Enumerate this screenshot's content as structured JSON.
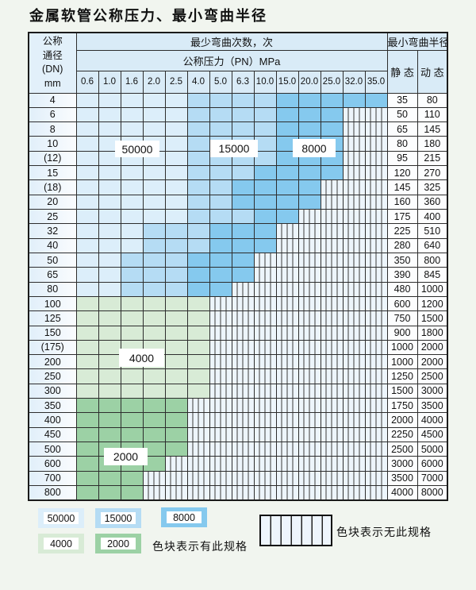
{
  "title": "金属软管公称压力、最小弯曲半径",
  "header": {
    "dn_lines": [
      "公称",
      "通径",
      "(DN)",
      "mm"
    ],
    "bend_count_label": "最少弯曲次数，次",
    "pressure_label": "公称压力（PN）MPa",
    "radius_label": "最小弯曲半径",
    "static_label": "静 态",
    "dynamic_label": "动 态",
    "pressure_columns": [
      "0.6",
      "1.0",
      "1.6",
      "2.0",
      "2.5",
      "4.0",
      "5.0",
      "6.3",
      "10.0",
      "15.0",
      "20.0",
      "25.0",
      "32.0",
      "35.0"
    ]
  },
  "colors": {
    "50": "#dceefa",
    "15": "#b5dcf4",
    "8": "#85c9ee",
    "4": "#d8ebd6",
    "2": "#9cd1a5"
  },
  "overlay_labels": [
    {
      "text": "50000"
    },
    {
      "text": "15000"
    },
    {
      "text": "8000"
    },
    {
      "text": "4000"
    },
    {
      "text": "2000"
    }
  ],
  "legend": {
    "swatches": [
      {
        "value": "50000",
        "code": "50"
      },
      {
        "value": "15000",
        "code": "15"
      },
      {
        "value": "8000",
        "code": "8"
      },
      {
        "value": "4000",
        "code": "4"
      },
      {
        "value": "2000",
        "code": "2"
      }
    ],
    "has_spec_label": "色块表示有此规格",
    "no_spec_label": "色块表示无此规格"
  },
  "rows": [
    {
      "dn": "4",
      "cells": [
        "50",
        "50",
        "50",
        "50",
        "50",
        "15",
        "15",
        "15",
        "15",
        "8",
        "8",
        "8",
        "8",
        "8"
      ],
      "static": "35",
      "dynamic": "80"
    },
    {
      "dn": "6",
      "cells": [
        "50",
        "50",
        "50",
        "50",
        "50",
        "15",
        "15",
        "15",
        "15",
        "8",
        "8",
        "8",
        "-",
        "-"
      ],
      "static": "50",
      "dynamic": "110"
    },
    {
      "dn": "8",
      "cells": [
        "50",
        "50",
        "50",
        "50",
        "50",
        "15",
        "15",
        "15",
        "15",
        "8",
        "8",
        "8",
        "-",
        "-"
      ],
      "static": "65",
      "dynamic": "145"
    },
    {
      "dn": "10",
      "cells": [
        "50",
        "50",
        "50",
        "50",
        "50",
        "15",
        "15",
        "15",
        "15",
        "8",
        "8",
        "8",
        "-",
        "-"
      ],
      "static": "80",
      "dynamic": "180"
    },
    {
      "dn": "(12)",
      "cells": [
        "50",
        "50",
        "50",
        "50",
        "50",
        "15",
        "15",
        "15",
        "15",
        "8",
        "8",
        "8",
        "-",
        "-"
      ],
      "static": "95",
      "dynamic": "215"
    },
    {
      "dn": "15",
      "cells": [
        "50",
        "50",
        "50",
        "50",
        "50",
        "15",
        "15",
        "15",
        "8",
        "8",
        "8",
        "8",
        "-",
        "-"
      ],
      "static": "120",
      "dynamic": "270"
    },
    {
      "dn": "(18)",
      "cells": [
        "50",
        "50",
        "50",
        "50",
        "50",
        "15",
        "15",
        "8",
        "8",
        "8",
        "8",
        "-",
        "-",
        "-"
      ],
      "static": "145",
      "dynamic": "325"
    },
    {
      "dn": "20",
      "cells": [
        "50",
        "50",
        "50",
        "50",
        "50",
        "15",
        "15",
        "8",
        "8",
        "8",
        "8",
        "-",
        "-",
        "-"
      ],
      "static": "160",
      "dynamic": "360"
    },
    {
      "dn": "25",
      "cells": [
        "50",
        "50",
        "50",
        "50",
        "50",
        "15",
        "15",
        "15",
        "8",
        "8",
        "-",
        "-",
        "-",
        "-"
      ],
      "static": "175",
      "dynamic": "400"
    },
    {
      "dn": "32",
      "cells": [
        "50",
        "50",
        "50",
        "15",
        "15",
        "15",
        "8",
        "8",
        "8",
        "-",
        "-",
        "-",
        "-",
        "-"
      ],
      "static": "225",
      "dynamic": "510"
    },
    {
      "dn": "40",
      "cells": [
        "50",
        "50",
        "50",
        "15",
        "15",
        "15",
        "8",
        "8",
        "8",
        "-",
        "-",
        "-",
        "-",
        "-"
      ],
      "static": "280",
      "dynamic": "640"
    },
    {
      "dn": "50",
      "cells": [
        "50",
        "50",
        "15",
        "15",
        "15",
        "8",
        "8",
        "8",
        "-",
        "-",
        "-",
        "-",
        "-",
        "-"
      ],
      "static": "350",
      "dynamic": "800"
    },
    {
      "dn": "65",
      "cells": [
        "50",
        "50",
        "15",
        "15",
        "15",
        "8",
        "8",
        "8",
        "-",
        "-",
        "-",
        "-",
        "-",
        "-"
      ],
      "static": "390",
      "dynamic": "845"
    },
    {
      "dn": "80",
      "cells": [
        "50",
        "50",
        "15",
        "15",
        "15",
        "8",
        "8",
        "-",
        "-",
        "-",
        "-",
        "-",
        "-",
        "-"
      ],
      "static": "480",
      "dynamic": "1000"
    },
    {
      "dn": "100",
      "cells": [
        "4",
        "4",
        "4",
        "4",
        "4",
        "4",
        "-",
        "-",
        "-",
        "-",
        "-",
        "-",
        "-",
        "-"
      ],
      "static": "600",
      "dynamic": "1200"
    },
    {
      "dn": "125",
      "cells": [
        "4",
        "4",
        "4",
        "4",
        "4",
        "4",
        "-",
        "-",
        "-",
        "-",
        "-",
        "-",
        "-",
        "-"
      ],
      "static": "750",
      "dynamic": "1500"
    },
    {
      "dn": "150",
      "cells": [
        "4",
        "4",
        "4",
        "4",
        "4",
        "4",
        "-",
        "-",
        "-",
        "-",
        "-",
        "-",
        "-",
        "-"
      ],
      "static": "900",
      "dynamic": "1800"
    },
    {
      "dn": "(175)",
      "cells": [
        "4",
        "4",
        "4",
        "4",
        "4",
        "4",
        "-",
        "-",
        "-",
        "-",
        "-",
        "-",
        "-",
        "-"
      ],
      "static": "1000",
      "dynamic": "2000"
    },
    {
      "dn": "200",
      "cells": [
        "4",
        "4",
        "4",
        "4",
        "4",
        "4",
        "-",
        "-",
        "-",
        "-",
        "-",
        "-",
        "-",
        "-"
      ],
      "static": "1000",
      "dynamic": "2000"
    },
    {
      "dn": "250",
      "cells": [
        "4",
        "4",
        "4",
        "4",
        "4",
        "4",
        "-",
        "-",
        "-",
        "-",
        "-",
        "-",
        "-",
        "-"
      ],
      "static": "1250",
      "dynamic": "2500"
    },
    {
      "dn": "300",
      "cells": [
        "4",
        "4",
        "4",
        "4",
        "4",
        "4",
        "-",
        "-",
        "-",
        "-",
        "-",
        "-",
        "-",
        "-"
      ],
      "static": "1500",
      "dynamic": "3000"
    },
    {
      "dn": "350",
      "cells": [
        "2",
        "2",
        "2",
        "2",
        "2",
        "-",
        "-",
        "-",
        "-",
        "-",
        "-",
        "-",
        "-",
        "-"
      ],
      "static": "1750",
      "dynamic": "3500"
    },
    {
      "dn": "400",
      "cells": [
        "2",
        "2",
        "2",
        "2",
        "2",
        "-",
        "-",
        "-",
        "-",
        "-",
        "-",
        "-",
        "-",
        "-"
      ],
      "static": "2000",
      "dynamic": "4000"
    },
    {
      "dn": "450",
      "cells": [
        "2",
        "2",
        "2",
        "2",
        "2",
        "-",
        "-",
        "-",
        "-",
        "-",
        "-",
        "-",
        "-",
        "-"
      ],
      "static": "2250",
      "dynamic": "4500"
    },
    {
      "dn": "500",
      "cells": [
        "2",
        "2",
        "2",
        "2",
        "2",
        "-",
        "-",
        "-",
        "-",
        "-",
        "-",
        "-",
        "-",
        "-"
      ],
      "static": "2500",
      "dynamic": "5000"
    },
    {
      "dn": "600",
      "cells": [
        "2",
        "2",
        "2",
        "2",
        "-",
        "-",
        "-",
        "-",
        "-",
        "-",
        "-",
        "-",
        "-",
        "-"
      ],
      "static": "3000",
      "dynamic": "6000"
    },
    {
      "dn": "700",
      "cells": [
        "2",
        "2",
        "2",
        "-",
        "-",
        "-",
        "-",
        "-",
        "-",
        "-",
        "-",
        "-",
        "-",
        "-"
      ],
      "static": "3500",
      "dynamic": "7000"
    },
    {
      "dn": "800",
      "cells": [
        "2",
        "2",
        "2",
        "-",
        "-",
        "-",
        "-",
        "-",
        "-",
        "-",
        "-",
        "-",
        "-",
        "-"
      ],
      "static": "4000",
      "dynamic": "8000"
    }
  ]
}
